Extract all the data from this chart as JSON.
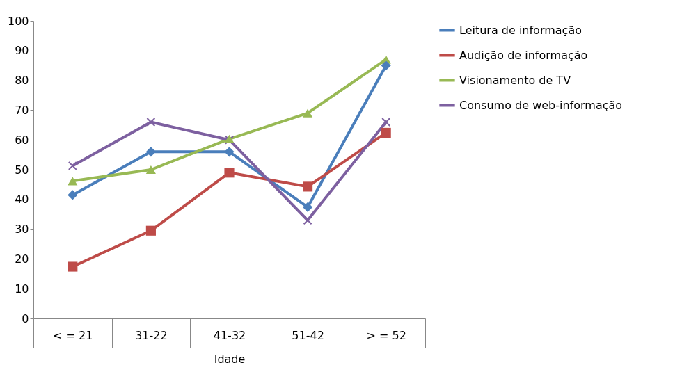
{
  "chart_data": {
    "type": "line",
    "xlabel": "Idade",
    "categories": [
      "< = 21",
      "31-22",
      "41-32",
      "51-42",
      "> = 52"
    ],
    "series": [
      {
        "name": "Leitura de informação",
        "color": "#4a7ebb",
        "marker": "diamond",
        "values": [
          41.5,
          56,
          56,
          37.4,
          85
        ]
      },
      {
        "name": "Audição de informação",
        "color": "#be4b48",
        "marker": "square",
        "values": [
          17.4,
          29.5,
          49,
          44.3,
          62.4
        ]
      },
      {
        "name": "Visionamento de TV",
        "color": "#98b954",
        "marker": "triangle",
        "values": [
          46.2,
          50,
          60.3,
          69,
          87
        ]
      },
      {
        "name": "Consumo de web-informação",
        "color": "#7d60a0",
        "marker": "cross",
        "values": [
          51.3,
          66,
          60,
          33,
          66
        ]
      }
    ],
    "ylim": [
      0,
      100
    ],
    "yticks": [
      0,
      10,
      20,
      30,
      40,
      50,
      60,
      70,
      80,
      90,
      100
    ],
    "grid": false,
    "legend": "right",
    "line_style": "solid"
  }
}
